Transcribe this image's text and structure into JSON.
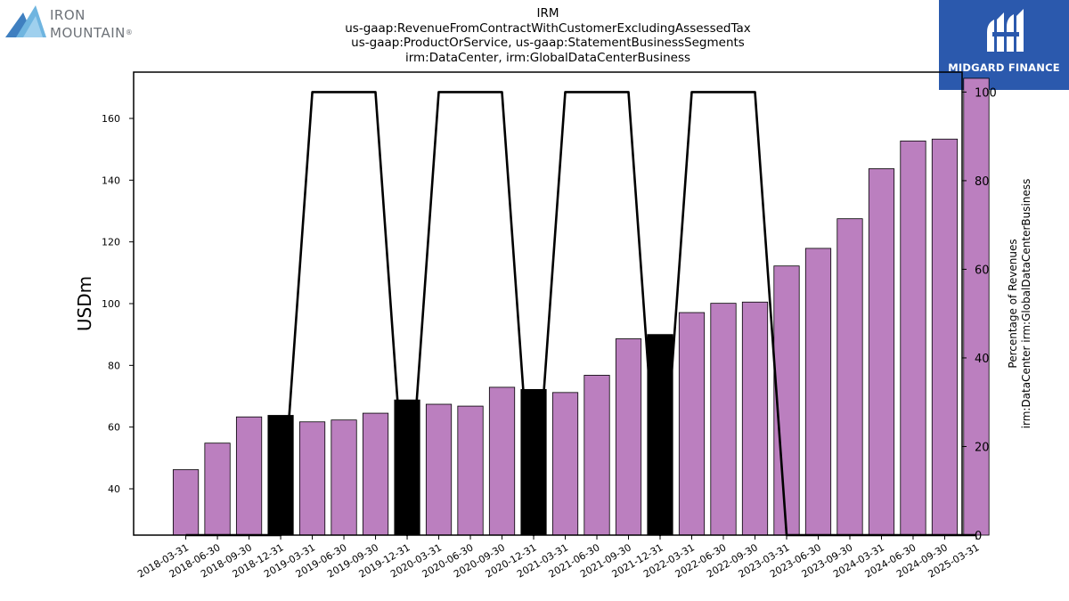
{
  "brand_left": {
    "line1": "IRON",
    "line2": "MOUNTAIN",
    "mark": "®"
  },
  "brand_right": {
    "name": "MIDGARD FINANCE",
    "icon": "midgard-logo-icon"
  },
  "chart_data": {
    "type": "bar",
    "title_lines": [
      "IRM",
      "us-gaap:RevenueFromContractWithCustomerExcludingAssessedTax",
      "us-gaap:ProductOrService, us-gaap:StatementBusinessSegments",
      "irm:DataCenter, irm:GlobalDataCenterBusiness"
    ],
    "ylabel": "USDm",
    "y2label_lines": [
      "Percentage of Revenues",
      "irm:DataCenter irm:GlobalDataCenterBusiness"
    ],
    "categories": [
      "2018-03-31",
      "2018-06-30",
      "2018-09-30",
      "2018-12-31",
      "2019-03-31",
      "2019-06-30",
      "2019-09-30",
      "2019-12-31",
      "2020-03-31",
      "2020-06-30",
      "2020-09-30",
      "2020-12-31",
      "2021-03-31",
      "2021-06-30",
      "2021-09-30",
      "2021-12-31",
      "2022-03-31",
      "2022-06-30",
      "2022-09-30",
      "2023-03-31",
      "2023-06-30",
      "2023-09-30",
      "2024-03-31",
      "2024-06-30",
      "2024-09-30",
      "2025-03-31"
    ],
    "series": [
      {
        "type": "bar",
        "values": [
          46.2,
          54.8,
          63.3,
          63.8,
          61.7,
          62.3,
          64.5,
          68.8,
          67.4,
          66.8,
          72.9,
          72.2,
          71.2,
          76.8,
          88.6,
          90.0,
          97.1,
          100.1,
          100.5,
          112.2,
          117.9,
          127.5,
          143.7,
          152.7,
          153.3,
          173.0
        ]
      },
      {
        "type": "line",
        "axis": "right",
        "values": [
          0,
          0,
          0,
          0,
          100,
          100,
          100,
          0,
          100,
          100,
          100,
          0,
          100,
          100,
          100,
          0,
          100,
          100,
          100,
          0,
          0,
          0,
          0,
          0,
          0,
          0
        ]
      }
    ],
    "highlight_categories": [
      "2018-12-31",
      "2019-12-31",
      "2020-12-31",
      "2021-12-31"
    ],
    "bar_color": "#bb7fbf",
    "highlight_color": "#000000",
    "line_color": "#000000",
    "ylim": [
      25,
      175
    ],
    "y2lim": [
      0,
      104.5
    ],
    "yticks": [
      40,
      60,
      80,
      100,
      120,
      140,
      160
    ],
    "y2ticks": [
      0,
      20,
      40,
      60,
      80,
      100
    ],
    "grid": false,
    "legend": "none"
  }
}
